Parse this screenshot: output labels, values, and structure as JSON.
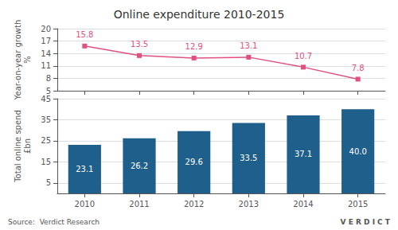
{
  "chart_data": [
    {
      "type": "line",
      "title": "Online expenditure 2010-2015",
      "categories": [
        "2010",
        "2011",
        "2012",
        "2013",
        "2014",
        "2015"
      ],
      "values": [
        15.8,
        13.5,
        12.9,
        13.1,
        10.7,
        7.8
      ],
      "color": "#e05080",
      "marker": "square",
      "ylabel": "Year-on-year growth\n%",
      "ylim": [
        5,
        20
      ],
      "yticks": [
        5,
        8,
        11,
        14,
        17,
        20
      ],
      "grid": true,
      "data_labels": true,
      "tick_labels": "y"
    },
    {
      "type": "bar",
      "categories": [
        "2010",
        "2011",
        "2012",
        "2013",
        "2014",
        "2015"
      ],
      "values": [
        23.1,
        26.2,
        29.6,
        33.5,
        37.1,
        40.0
      ],
      "value_labels": [
        "23.1",
        "26.2",
        "29.6",
        "33.5",
        "37.1",
        "40.0"
      ],
      "color": "#1f5f8b",
      "ylabel": "Total online spend\n£bn",
      "ylim": [
        0,
        45
      ],
      "yticks": [
        5,
        15,
        25,
        35,
        45
      ],
      "grid": true,
      "data_labels": true,
      "annotations": [
        "Source:  Verdict Research",
        "V E R D I C T"
      ]
    }
  ]
}
